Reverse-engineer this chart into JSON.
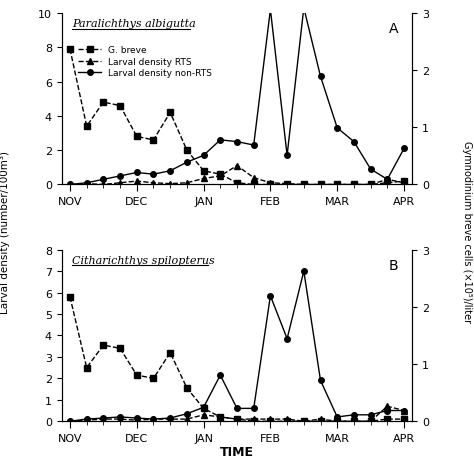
{
  "title_A": "Paralichthys albigutta",
  "title_B": "Citharichthys spilopterus",
  "panel_label_A": "A",
  "panel_label_B": "B",
  "xlabel": "TIME",
  "ylabel_left": "Larval density (number/100m³)",
  "ylabel_right": "Gymnodinium breve cells (×10⁵)/liter",
  "month_labels": [
    "NOV",
    "DEC",
    "JAN",
    "FEB",
    "MAR",
    "APR"
  ],
  "x_ticks_major": [
    0,
    4,
    8,
    12,
    16,
    20
  ],
  "x_minor_ticks": [
    1,
    2,
    3,
    4,
    5,
    6,
    7,
    8,
    9,
    10,
    11,
    12,
    13,
    14,
    15,
    16,
    17,
    18,
    19,
    20
  ],
  "panel_A": {
    "g_breve": {
      "x": [
        0,
        1,
        2,
        3,
        4,
        5,
        6,
        7,
        8,
        9,
        10,
        11,
        12,
        13,
        14,
        15,
        16,
        17,
        18,
        19,
        20
      ],
      "y": [
        7.9,
        3.4,
        4.8,
        4.6,
        2.8,
        2.6,
        4.2,
        2.0,
        0.8,
        0.6,
        0.1,
        0.0,
        0.0,
        0.0,
        0.0,
        0.0,
        0.0,
        0.0,
        0.0,
        0.1,
        0.2
      ]
    },
    "larval_RTS": {
      "x": [
        0,
        1,
        2,
        3,
        4,
        5,
        6,
        7,
        8,
        9,
        10,
        11,
        12,
        13,
        14,
        15,
        16,
        17,
        18,
        19,
        20
      ],
      "y": [
        0.0,
        0.05,
        0.0,
        0.1,
        0.2,
        0.1,
        0.05,
        0.1,
        0.35,
        0.5,
        1.1,
        0.4,
        0.1,
        0.05,
        0.0,
        0.0,
        0.0,
        0.0,
        0.0,
        0.3,
        0.1
      ]
    },
    "larval_nonRTS": {
      "x": [
        0,
        1,
        2,
        3,
        4,
        5,
        6,
        7,
        8,
        9,
        10,
        11,
        12,
        13,
        14,
        15,
        16,
        17,
        18,
        19,
        20
      ],
      "y": [
        0.0,
        0.1,
        0.3,
        0.5,
        0.7,
        0.6,
        0.8,
        1.3,
        1.7,
        2.6,
        2.5,
        2.3,
        10.2,
        1.7,
        10.3,
        6.3,
        3.3,
        2.5,
        0.9,
        0.3,
        2.1
      ]
    },
    "ylim_left": [
      0,
      10
    ],
    "ylim_right": [
      0,
      3
    ],
    "yticks_left": [
      0,
      2,
      4,
      6,
      8,
      10
    ],
    "yticks_right": [
      0,
      1,
      2,
      3
    ]
  },
  "panel_B": {
    "g_breve": {
      "x": [
        0,
        1,
        2,
        3,
        4,
        5,
        6,
        7,
        8,
        9,
        10,
        11,
        12,
        13,
        14,
        15,
        16,
        17,
        18,
        19,
        20
      ],
      "y": [
        5.8,
        2.5,
        3.55,
        3.4,
        2.15,
        2.0,
        3.2,
        1.55,
        0.6,
        0.2,
        0.1,
        0.0,
        0.0,
        0.0,
        0.0,
        0.0,
        0.0,
        0.0,
        0.0,
        0.1,
        0.1
      ]
    },
    "larval_RTS": {
      "x": [
        0,
        1,
        2,
        3,
        4,
        5,
        6,
        7,
        8,
        9,
        10,
        11,
        12,
        13,
        14,
        15,
        16,
        17,
        18,
        19,
        20
      ],
      "y": [
        0.0,
        0.05,
        0.1,
        0.1,
        0.05,
        0.1,
        0.1,
        0.1,
        0.3,
        0.2,
        0.1,
        0.1,
        0.1,
        0.1,
        0.0,
        0.1,
        0.0,
        0.0,
        0.0,
        0.7,
        0.5
      ]
    },
    "larval_nonRTS": {
      "x": [
        0,
        1,
        2,
        3,
        4,
        5,
        6,
        7,
        8,
        9,
        10,
        11,
        12,
        13,
        14,
        15,
        16,
        17,
        18,
        19,
        20
      ],
      "y": [
        0.0,
        0.1,
        0.15,
        0.2,
        0.15,
        0.1,
        0.15,
        0.35,
        0.65,
        2.15,
        0.6,
        0.6,
        5.85,
        3.85,
        7.0,
        1.9,
        0.2,
        0.3,
        0.3,
        0.5,
        0.5
      ]
    },
    "ylim_left": [
      0,
      8
    ],
    "ylim_right": [
      0,
      3
    ],
    "yticks_left": [
      0,
      1,
      2,
      3,
      4,
      5,
      6,
      7,
      8
    ],
    "yticks_right": [
      0,
      1,
      2,
      3
    ]
  },
  "g_breve_color": "black",
  "g_breve_linestyle": "--",
  "g_breve_marker": "s",
  "larval_RTS_color": "black",
  "larval_RTS_linestyle": "--",
  "larval_RTS_marker": "^",
  "larval_nonRTS_color": "black",
  "larval_nonRTS_linestyle": "-",
  "larval_nonRTS_marker": "o",
  "background_color": "white",
  "legend_labels": [
    "G. breve",
    "Larval density RTS",
    "Larval density non-RTS"
  ]
}
